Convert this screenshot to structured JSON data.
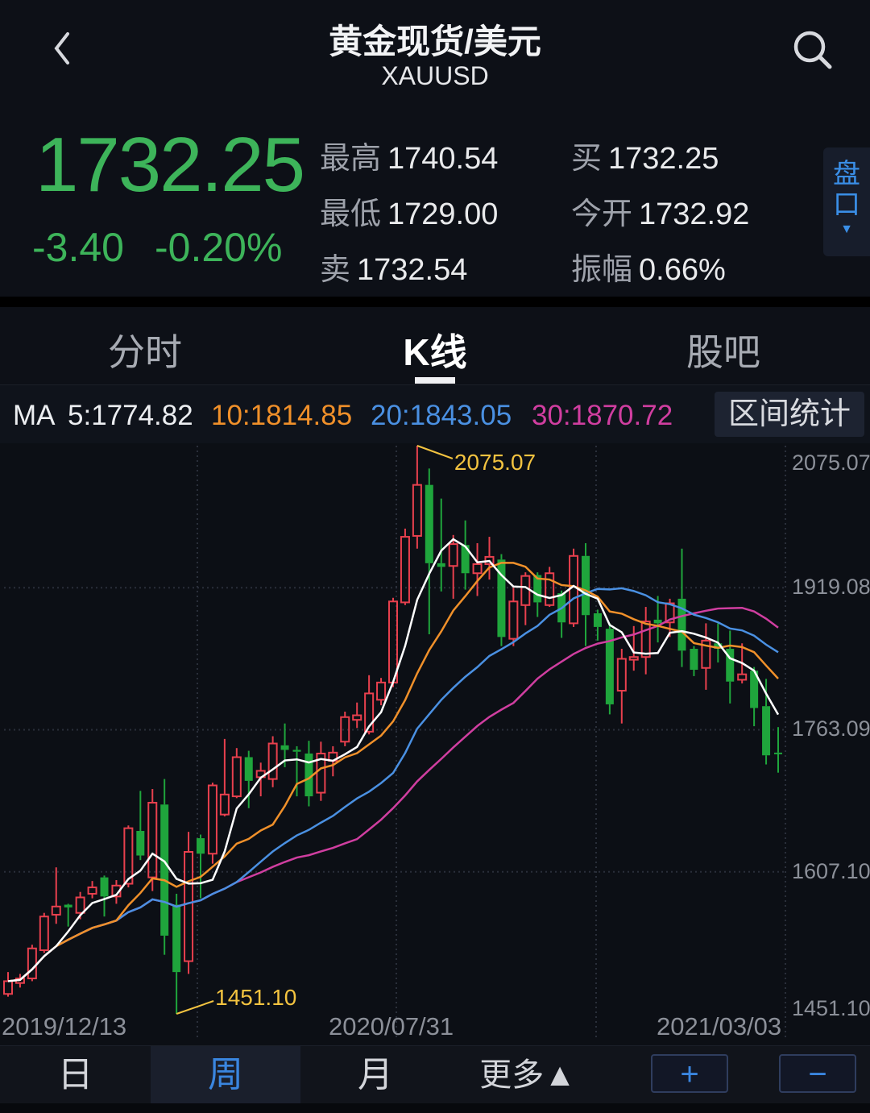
{
  "header": {
    "title": "黄金现货/美元",
    "symbol": "XAUUSD",
    "back_icon": "chevron-left-icon",
    "search_icon": "search-icon"
  },
  "quote": {
    "price": "1732.25",
    "change": "-3.40",
    "change_pct": "-0.20%",
    "color_down": "#3db45a",
    "stats": [
      {
        "label": "最高",
        "value": "1740.54"
      },
      {
        "label": "最低",
        "value": "1729.00"
      },
      {
        "label": "卖",
        "value": "1732.54"
      },
      {
        "label": "买",
        "value": "1732.25"
      },
      {
        "label": "今开",
        "value": "1732.92"
      },
      {
        "label": "振幅",
        "value": "0.66%"
      }
    ],
    "pankou_label": "盘口",
    "pankou_arrow": "▼"
  },
  "tabs": [
    {
      "label": "分时",
      "active": false
    },
    {
      "label": "K线",
      "active": true
    },
    {
      "label": "股吧",
      "active": false
    }
  ],
  "ma_bar": {
    "prefix": "MA",
    "ma5": "5:1774.82",
    "ma10": "10:1814.85",
    "ma20": "20:1843.05",
    "ma30": "30:1870.72",
    "range_stats_button": "区间统计"
  },
  "bottom_bar": {
    "day": "日",
    "week": "周",
    "month": "月",
    "more": "更多▲",
    "zoom_in": "+",
    "zoom_out": "−",
    "selected": "周"
  },
  "chart_data": {
    "type": "candlestick",
    "interval": "weekly",
    "ylim": [
      1451.1,
      2075.07
    ],
    "y_tick_labels": [
      "2075.07",
      "1919.08",
      "1763.09",
      "1607.10",
      "1451.10"
    ],
    "x_tick_labels": [
      "2019/12/13",
      "2020/07/31",
      "2021/03/03"
    ],
    "max_annotation": "2075.07",
    "min_annotation": "1451.10",
    "grid": true,
    "colors": {
      "up": "#e8404e",
      "down": "#1fa53c",
      "ma5": "#ffffff",
      "ma10": "#f0902a",
      "ma20": "#4a90e2",
      "ma30": "#d03ea0",
      "annotation": "#f3c340"
    },
    "moving_averages": [
      5,
      10,
      20,
      30
    ],
    "ohlc_columns": [
      "open",
      "high",
      "low",
      "close"
    ],
    "ohlc": [
      [
        1473,
        1497,
        1470,
        1487
      ],
      [
        1485,
        1495,
        1480,
        1490
      ],
      [
        1490,
        1527,
        1487,
        1523
      ],
      [
        1521,
        1562,
        1518,
        1558
      ],
      [
        1560,
        1612,
        1550,
        1569
      ],
      [
        1571,
        1572,
        1547,
        1568
      ],
      [
        1562,
        1585,
        1555,
        1579
      ],
      [
        1583,
        1597,
        1578,
        1590
      ],
      [
        1601,
        1603,
        1558,
        1580
      ],
      [
        1580,
        1598,
        1572,
        1592
      ],
      [
        1594,
        1658,
        1590,
        1655
      ],
      [
        1652,
        1696,
        1620,
        1625
      ],
      [
        1601,
        1698,
        1586,
        1683
      ],
      [
        1681,
        1709,
        1516,
        1537
      ],
      [
        1571,
        1583,
        1451.1,
        1497
      ],
      [
        1509,
        1651,
        1495,
        1629
      ],
      [
        1644,
        1648,
        1578,
        1627
      ],
      [
        1627,
        1705,
        1616,
        1702
      ],
      [
        1670,
        1753,
        1668,
        1692
      ],
      [
        1690,
        1743,
        1688,
        1733
      ],
      [
        1733,
        1740,
        1677,
        1707
      ],
      [
        1711,
        1727,
        1690,
        1718
      ],
      [
        1709,
        1756,
        1700,
        1748
      ],
      [
        1746,
        1770,
        1722,
        1741
      ],
      [
        1741,
        1745,
        1690,
        1739
      ],
      [
        1737,
        1751,
        1679,
        1690
      ],
      [
        1694,
        1750,
        1685,
        1737
      ],
      [
        1729,
        1745,
        1712,
        1738
      ],
      [
        1750,
        1783,
        1745,
        1777
      ],
      [
        1774,
        1793,
        1765,
        1779
      ],
      [
        1761,
        1823,
        1758,
        1803
      ],
      [
        1796,
        1820,
        1790,
        1815
      ],
      [
        1815,
        1908,
        1810,
        1904
      ],
      [
        1903,
        1984,
        1900,
        1975
      ],
      [
        1976,
        2075.07,
        1962,
        2032
      ],
      [
        2032,
        2050,
        1868,
        1946
      ],
      [
        1946,
        2017,
        1915,
        1942
      ],
      [
        1943,
        1977,
        1907,
        1967
      ],
      [
        1966,
        1993,
        1917,
        1935
      ],
      [
        1935,
        1968,
        1910,
        1945
      ],
      [
        1945,
        1975,
        1928,
        1953
      ],
      [
        1950,
        1956,
        1855,
        1865
      ],
      [
        1863,
        1919,
        1855,
        1904
      ],
      [
        1900,
        1936,
        1878,
        1932
      ],
      [
        1933,
        1936,
        1887,
        1903
      ],
      [
        1900,
        1942,
        1898,
        1935
      ],
      [
        1913,
        1916,
        1864,
        1881
      ],
      [
        1880,
        1962,
        1876,
        1954
      ],
      [
        1954,
        1968,
        1855,
        1889
      ],
      [
        1891,
        1895,
        1861,
        1876
      ],
      [
        1874,
        1880,
        1780,
        1791
      ],
      [
        1806,
        1852,
        1770,
        1841
      ],
      [
        1840,
        1877,
        1828,
        1843
      ],
      [
        1843,
        1898,
        1824,
        1882
      ],
      [
        1884,
        1910,
        1859,
        1880
      ],
      [
        1881,
        1907,
        1865,
        1902
      ],
      [
        1907,
        1962,
        1832,
        1850
      ],
      [
        1852,
        1855,
        1822,
        1829
      ],
      [
        1831,
        1880,
        1807,
        1861
      ],
      [
        1858,
        1880,
        1837,
        1852
      ],
      [
        1852,
        1872,
        1792,
        1816
      ],
      [
        1818,
        1858,
        1814,
        1824
      ],
      [
        1828,
        1832,
        1767,
        1787
      ],
      [
        1789,
        1819,
        1725,
        1735
      ],
      [
        1738,
        1766,
        1716,
        1737
      ]
    ]
  }
}
